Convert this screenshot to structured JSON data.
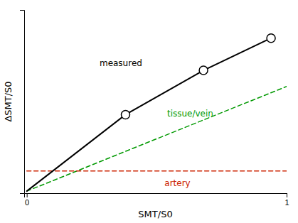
{
  "chart_data": {
    "type": "line",
    "xlabel": "SMT/S0",
    "ylabel": "ΔSMT/S0",
    "xlim": [
      -0.01,
      1.0
    ],
    "ylim": [
      -0.01,
      0.9
    ],
    "xticks": [
      0,
      1
    ],
    "yticks": [],
    "tick_labels": "x",
    "grid": false,
    "series": [
      {
        "type": "line",
        "line_style": "dashed",
        "color": "#009900",
        "x": [
          0.0,
          1.0
        ],
        "values": [
          0.0,
          0.52
        ]
      },
      {
        "type": "line",
        "line_style": "dashed",
        "color": "#cc2200",
        "x": [
          0.0,
          1.0
        ],
        "values": [
          0.1,
          0.1
        ]
      },
      {
        "type": "line",
        "line_style": "solid",
        "color": "#000000",
        "x": [
          0.0,
          0.38,
          0.68,
          0.94
        ],
        "values": [
          0.0,
          0.38,
          0.6,
          0.76
        ]
      },
      {
        "type": "scatter",
        "marker": "circle",
        "color": "#000000",
        "x": [
          0.38,
          0.68,
          0.94
        ],
        "values": [
          0.38,
          0.6,
          0.76
        ]
      }
    ],
    "annotations": [
      {
        "text": "measured",
        "x": 0.28,
        "y": 0.62,
        "color": "#000000"
      },
      {
        "text": "tissue/vein",
        "x": 0.54,
        "y": 0.37,
        "color": "#009900"
      },
      {
        "text": "artery",
        "x": 0.53,
        "y": 0.025,
        "color": "#cc2200"
      }
    ]
  }
}
